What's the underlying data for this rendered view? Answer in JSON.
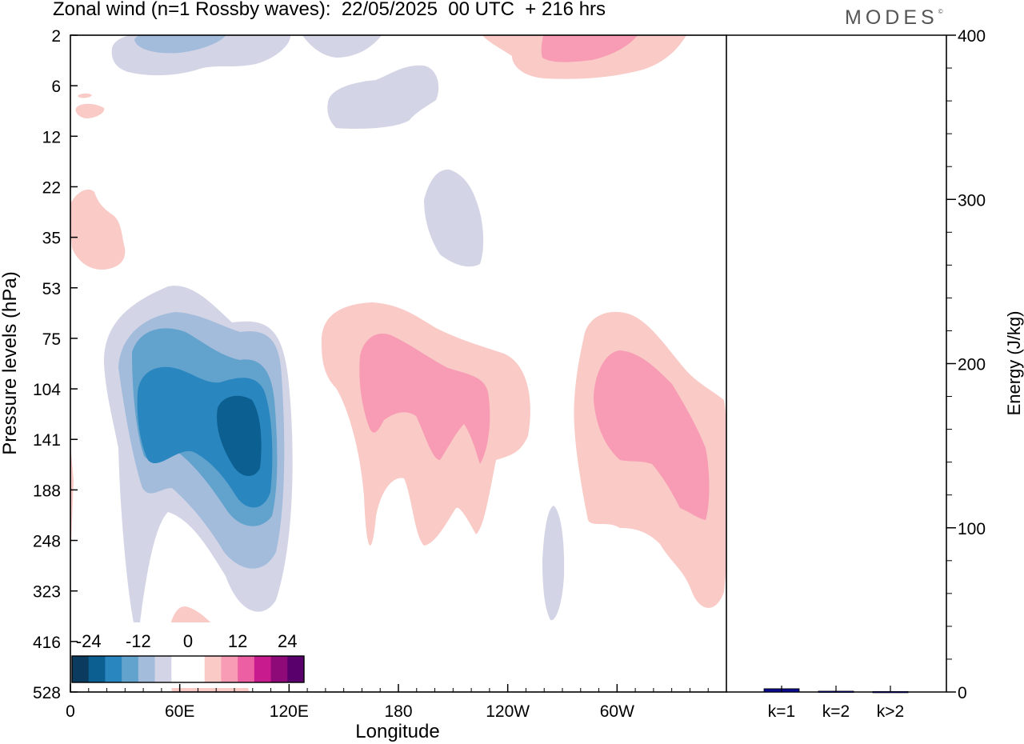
{
  "title": "Zonal wind (n=1 Rossby waves):  22/05/2025  00 UTC  + 216 hrs",
  "logo": "MODES",
  "logo_mark": "©",
  "chart_data": [
    {
      "type": "heatmap",
      "xlabel": "Longitude",
      "ylabel": "Pressure levels (hPa)",
      "x_tick_labels": [
        "0",
        "60E",
        "120E",
        "180",
        "120W",
        "60W"
      ],
      "x_range": [
        0,
        360
      ],
      "y_tick_labels": [
        "2",
        "6",
        "12",
        "22",
        "35",
        "53",
        "75",
        "104",
        "141",
        "188",
        "248",
        "323",
        "416",
        "528"
      ],
      "colorbar": {
        "tick_labels": [
          "-24",
          "-12",
          "0",
          "12",
          "24"
        ],
        "levels": [
          -30,
          -24,
          -18,
          -12,
          -6,
          -3,
          3,
          6,
          12,
          18,
          24,
          30
        ],
        "colors": [
          "#0b3b5e",
          "#0b5f91",
          "#2a86bf",
          "#62a3cd",
          "#a4bcdc",
          "#d3d5e6",
          "#ffffff",
          "#ffffff",
          "#f9cac6",
          "#f79cb4",
          "#ec5fa2",
          "#c81b8d",
          "#8e0a78",
          "#5a006d"
        ]
      },
      "anomalies": [
        {
          "sign": "negative",
          "lon": 80,
          "level": "141",
          "value": -24
        },
        {
          "sign": "positive",
          "lon": 190,
          "level": "141",
          "value": 9
        },
        {
          "sign": "positive",
          "lon": 300,
          "level": "141",
          "value": 9
        },
        {
          "sign": "positive",
          "lon": 240,
          "level": "2",
          "value": 9
        },
        {
          "sign": "negative",
          "lon": 40,
          "level": "2",
          "value": -9
        },
        {
          "sign": "negative",
          "lon": 195,
          "level": "6",
          "value": -3
        },
        {
          "sign": "negative",
          "lon": 210,
          "level": "22",
          "value": -3
        },
        {
          "sign": "positive",
          "lon": 10,
          "level": "35",
          "value": 3
        },
        {
          "sign": "positive",
          "lon": 65,
          "level": "416",
          "value": 3
        },
        {
          "sign": "negative",
          "lon": 265,
          "level": "248",
          "value": -3
        }
      ]
    },
    {
      "type": "bar",
      "ylabel": "Energy (J/kg)",
      "categories": [
        "k=1",
        "k=2",
        "k>2"
      ],
      "values": [
        2,
        0.5,
        0.3
      ],
      "ylim": [
        0,
        400
      ],
      "y_tick_labels": [
        "0",
        "100",
        "200",
        "300",
        "400"
      ],
      "bar_color": "#0a0a8c"
    }
  ]
}
